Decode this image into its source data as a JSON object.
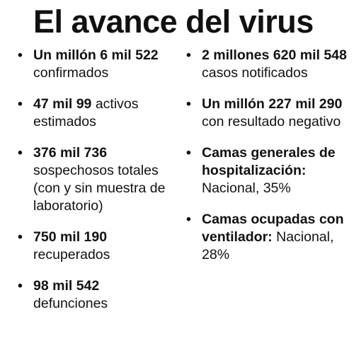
{
  "title": "El avance del virus",
  "left_items": [
    {
      "strong": "Un millón 6 mil 522",
      "rest": "confirmados"
    },
    {
      "strong": "47 mil 99",
      "rest": "activos estimados"
    },
    {
      "strong": "376 mil 736",
      "rest": "sospechosos totales (con y sin muestra de laboratorio)"
    },
    {
      "strong": "750 mil 190",
      "rest": "recuperados"
    },
    {
      "strong": "98 mil 542",
      "rest": "defunciones"
    }
  ],
  "right_items": [
    {
      "strong": "2 millones 620 mil 548",
      "rest": "casos notificados"
    },
    {
      "strong": "Un millón 227 mil 290",
      "rest": "con resultado negativo"
    },
    {
      "strong": "Camas generales de hospitalización:",
      "rest": "Nacional, 35%"
    },
    {
      "strong": "Camas ocupadas con ventilador:",
      "rest": "Nacional, 28%"
    }
  ],
  "bullet_glyph": "•"
}
